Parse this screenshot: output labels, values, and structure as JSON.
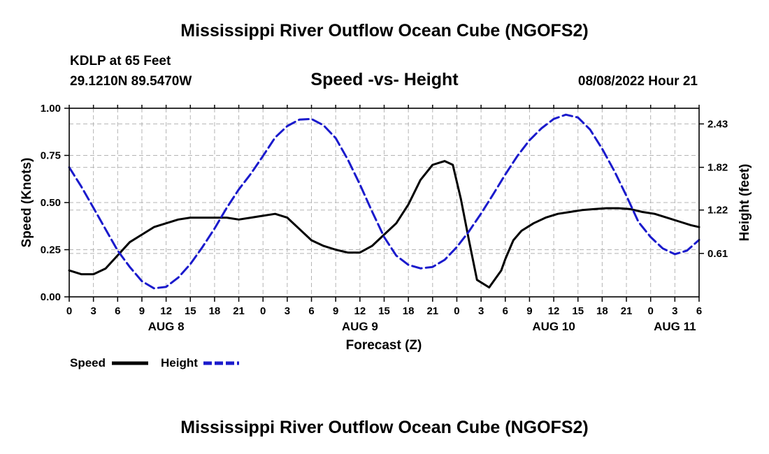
{
  "header": {
    "title": "Mississippi River Outflow Ocean Cube (NGOFS2)",
    "station": "KDLP at 65 Feet",
    "coordinates": "29.1210N  89.5470W",
    "subtitle": "Speed -vs- Height",
    "run_time": "08/08/2022 Hour 21"
  },
  "footer": {
    "title": "Mississippi River Outflow Ocean Cube (NGOFS2)"
  },
  "chart_data": {
    "type": "line",
    "xlabel": "Forecast (Z)",
    "ylabel": "Speed (Knots)",
    "y2label": "Height (feet)",
    "x_range": [
      0,
      78
    ],
    "ylim": [
      0,
      1.0
    ],
    "y2lim": [
      0,
      2.65
    ],
    "y_ticks": [
      0,
      0.25,
      0.5,
      0.75,
      1.0
    ],
    "y_tick_labels": [
      "0.00",
      "0.25",
      "0.50",
      "0.75",
      "1.00"
    ],
    "y2_ticks": [
      0.61,
      1.22,
      1.82,
      2.43
    ],
    "y2_tick_labels": [
      "0.61",
      "1.22",
      "1.82",
      "2.43"
    ],
    "x_ticks": [
      0,
      3,
      6,
      9,
      12,
      15,
      18,
      21,
      24,
      27,
      30,
      33,
      36,
      39,
      42,
      45,
      48,
      51,
      54,
      57,
      60,
      63,
      66,
      69,
      72,
      75,
      78
    ],
    "x_tick_labels": [
      "0",
      "3",
      "6",
      "9",
      "12",
      "15",
      "18",
      "21",
      "0",
      "3",
      "6",
      "9",
      "12",
      "15",
      "18",
      "21",
      "0",
      "3",
      "6",
      "9",
      "12",
      "15",
      "18",
      "21",
      "0",
      "3",
      "6"
    ],
    "day_labels": [
      {
        "x": 12,
        "label": "AUG 8"
      },
      {
        "x": 36,
        "label": "AUG 9"
      },
      {
        "x": 60,
        "label": "AUG 10"
      },
      {
        "x": 75,
        "label": "AUG 11"
      }
    ],
    "grid": true,
    "legend": [
      {
        "name": "Speed",
        "color": "#000000",
        "dash": "solid"
      },
      {
        "name": "Height",
        "color": "#1a1acc",
        "dash": "dashed"
      }
    ],
    "series": [
      {
        "name": "Speed",
        "axis": "left",
        "color": "#000000",
        "x": [
          0,
          1.5,
          3,
          4.5,
          6,
          7.5,
          9,
          10.5,
          12,
          13.5,
          15,
          16.5,
          18,
          19.5,
          21,
          22.5,
          24,
          25.5,
          27,
          28.5,
          30,
          31.5,
          33,
          34.5,
          36,
          37.5,
          39,
          40.5,
          42,
          43.5,
          45,
          46.5,
          47.5,
          48.5,
          49.5,
          50.5,
          52,
          53.5,
          54,
          55,
          56,
          57.5,
          59,
          60.5,
          62,
          63.5,
          65,
          66.5,
          68,
          69.5,
          71,
          72.5,
          74,
          75.5,
          77,
          78
        ],
        "y": [
          0.14,
          0.12,
          0.12,
          0.15,
          0.22,
          0.29,
          0.33,
          0.37,
          0.39,
          0.41,
          0.42,
          0.42,
          0.42,
          0.42,
          0.41,
          0.42,
          0.43,
          0.44,
          0.42,
          0.36,
          0.3,
          0.27,
          0.25,
          0.235,
          0.235,
          0.27,
          0.33,
          0.39,
          0.49,
          0.62,
          0.7,
          0.72,
          0.7,
          0.52,
          0.3,
          0.09,
          0.05,
          0.14,
          0.2,
          0.3,
          0.35,
          0.39,
          0.42,
          0.44,
          0.45,
          0.46,
          0.465,
          0.47,
          0.47,
          0.465,
          0.45,
          0.44,
          0.42,
          0.4,
          0.38,
          0.37
        ]
      },
      {
        "name": "Height",
        "axis": "right",
        "color": "#1a1acc",
        "x": [
          0,
          1.5,
          3,
          4.5,
          6,
          7.5,
          9,
          10.5,
          12,
          13.5,
          15,
          16.5,
          18,
          19.5,
          21,
          22.5,
          24,
          25.5,
          27,
          28.5,
          30,
          31.5,
          33,
          34.5,
          36,
          37.5,
          39,
          40.5,
          42,
          43.5,
          45,
          46.5,
          48,
          49.5,
          51,
          52.5,
          54,
          55.5,
          57,
          58.5,
          60,
          61.5,
          63,
          64.5,
          66,
          67.5,
          69,
          70.5,
          72,
          73.5,
          75,
          76.5,
          78
        ],
        "y": [
          1.82,
          1.55,
          1.25,
          0.95,
          0.65,
          0.42,
          0.22,
          0.12,
          0.14,
          0.27,
          0.46,
          0.7,
          0.96,
          1.25,
          1.51,
          1.73,
          1.98,
          2.24,
          2.4,
          2.49,
          2.5,
          2.41,
          2.23,
          1.93,
          1.58,
          1.2,
          0.84,
          0.58,
          0.45,
          0.4,
          0.42,
          0.52,
          0.7,
          0.92,
          1.17,
          1.44,
          1.72,
          1.98,
          2.2,
          2.37,
          2.5,
          2.56,
          2.52,
          2.35,
          2.08,
          1.77,
          1.42,
          1.05,
          0.84,
          0.68,
          0.6,
          0.65,
          0.8
        ]
      }
    ]
  }
}
